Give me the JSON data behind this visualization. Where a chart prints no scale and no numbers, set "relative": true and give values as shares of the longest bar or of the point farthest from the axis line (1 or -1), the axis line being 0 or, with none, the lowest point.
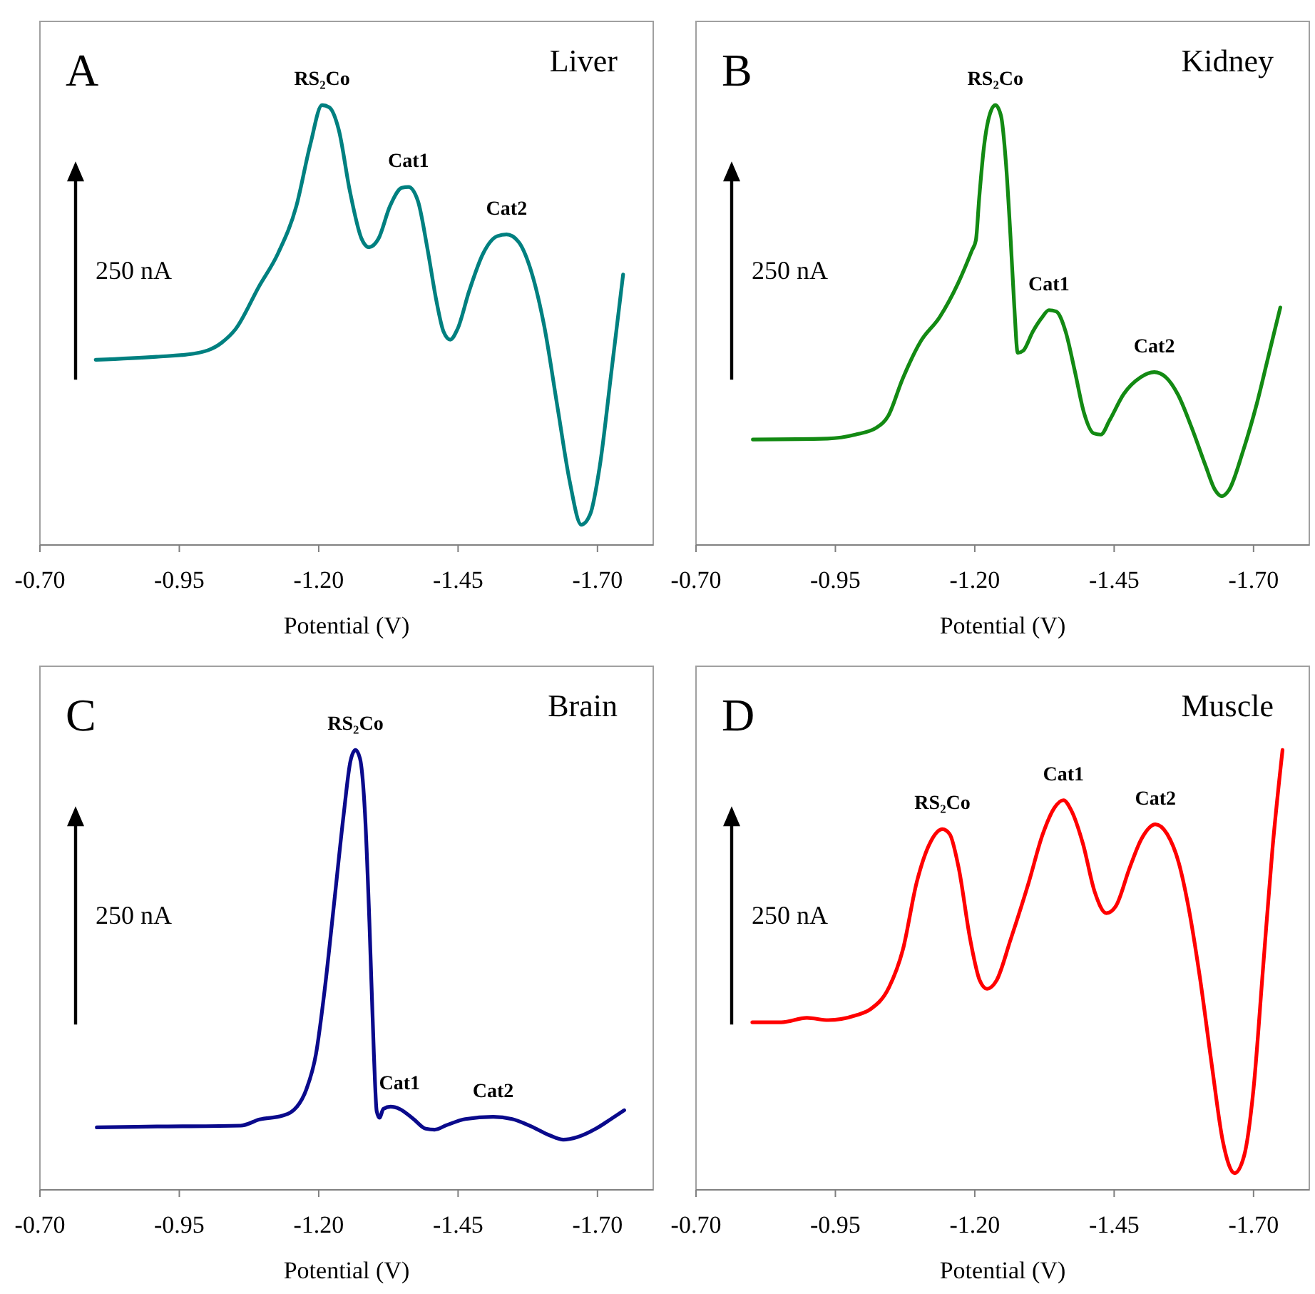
{
  "chart_data": [
    {
      "type": "line",
      "title": "A",
      "subtitle": "Liver",
      "xlabel": "Potential (V)",
      "relative": true,
      "xlim": [
        -0.7,
        -1.8
      ],
      "xticks": [
        {
          "value": -0.7,
          "label": "-0.70"
        },
        {
          "value": -0.95,
          "label": "-0.95"
        },
        {
          "value": -1.2,
          "label": "-1.20"
        },
        {
          "value": -1.45,
          "label": "-1.45"
        },
        {
          "value": -1.7,
          "label": "-1.70"
        }
      ],
      "series": [
        {
          "color": "#008080",
          "x": [
            -0.8,
            -0.909,
            -0.976,
            -1.026,
            -1.051,
            -1.093,
            -1.127,
            -1.16,
            -1.185,
            -1.206,
            -1.219,
            -1.236,
            -1.256,
            -1.277,
            -1.29,
            -1.307,
            -1.328,
            -1.349,
            -1.361,
            -1.378,
            -1.395,
            -1.411,
            -1.424,
            -1.436,
            -1.449,
            -1.47,
            -1.495,
            -1.52,
            -1.537,
            -1.558,
            -1.579,
            -1.604,
            -1.629,
            -1.65,
            -1.671,
            -1.687,
            -1.704,
            -1.725,
            -1.746
          ],
          "values": [
            0.421,
            0.428,
            0.435,
            0.46,
            0.491,
            0.588,
            0.663,
            0.771,
            0.911,
            1.0,
            0.995,
            0.944,
            0.804,
            0.696,
            0.677,
            0.696,
            0.771,
            0.812,
            0.814,
            0.782,
            0.674,
            0.556,
            0.485,
            0.467,
            0.491,
            0.578,
            0.663,
            0.702,
            0.706,
            0.69,
            0.631,
            0.501,
            0.308,
            0.146,
            0.046,
            0.07,
            0.178,
            0.394,
            0.615
          ]
        }
      ],
      "annotations": [
        "250 nA",
        {
          "text": "RS₂Co",
          "x": -1.206,
          "y": 1.0
        },
        {
          "text": "Cat1",
          "x": -1.361,
          "y": 0.814
        },
        {
          "text": "Cat2",
          "x": -1.537,
          "y": 0.706
        }
      ]
    },
    {
      "type": "line",
      "title": "B",
      "subtitle": "Kidney",
      "xlabel": "Potential (V)",
      "relative": true,
      "xlim": [
        -0.7,
        -1.8
      ],
      "xticks": [
        {
          "value": -0.7,
          "label": "-0.70"
        },
        {
          "value": -0.95,
          "label": "-0.95"
        },
        {
          "value": -1.2,
          "label": "-1.20"
        },
        {
          "value": -1.45,
          "label": "-1.45"
        },
        {
          "value": -1.7,
          "label": "-1.70"
        }
      ],
      "series": [
        {
          "color": "#138a13",
          "x": [
            -0.802,
            -0.936,
            -0.986,
            -1.024,
            -1.045,
            -1.07,
            -1.103,
            -1.137,
            -1.17,
            -1.195,
            -1.202,
            -1.208,
            -1.216,
            -1.229,
            -1.237,
            -1.247,
            -1.256,
            -1.264,
            -1.271,
            -1.277,
            -1.287,
            -1.304,
            -1.321,
            -1.333,
            -1.346,
            -1.363,
            -1.379,
            -1.396,
            -1.413,
            -1.426,
            -1.442,
            -1.467,
            -1.497,
            -1.522,
            -1.543,
            -1.564,
            -1.589,
            -1.614,
            -1.631,
            -1.643,
            -1.656,
            -1.681,
            -1.706,
            -1.727,
            -1.748
          ],
          "values": [
            0.24,
            0.242,
            0.251,
            0.267,
            0.294,
            0.376,
            0.463,
            0.518,
            0.595,
            0.67,
            0.693,
            0.79,
            0.9,
            0.987,
            1.0,
            0.976,
            0.867,
            0.703,
            0.54,
            0.437,
            0.442,
            0.485,
            0.518,
            0.534,
            0.531,
            0.485,
            0.398,
            0.3,
            0.254,
            0.251,
            0.284,
            0.343,
            0.381,
            0.393,
            0.381,
            0.343,
            0.267,
            0.18,
            0.125,
            0.111,
            0.125,
            0.213,
            0.322,
            0.431,
            0.54
          ]
        }
      ],
      "annotations": [
        "250 nA",
        {
          "text": "RS₂Co",
          "x": -1.237,
          "y": 1.0
        },
        {
          "text": "Cat1",
          "x": -1.333,
          "y": 0.534
        },
        {
          "text": "Cat2",
          "x": -1.522,
          "y": 0.393
        }
      ]
    },
    {
      "type": "line",
      "title": "C",
      "subtitle": "Brain",
      "xlabel": "Potential (V)",
      "relative": true,
      "xlim": [
        -0.7,
        -1.8
      ],
      "xticks": [
        {
          "value": -0.7,
          "label": "-0.70"
        },
        {
          "value": -0.95,
          "label": "-0.95"
        },
        {
          "value": -1.2,
          "label": "-1.20"
        },
        {
          "value": -1.45,
          "label": "-1.45"
        },
        {
          "value": -1.7,
          "label": "-1.70"
        }
      ],
      "series": [
        {
          "color": "#0a0a8c",
          "x": [
            -0.802,
            -0.91,
            -1.06,
            -1.094,
            -1.136,
            -1.161,
            -1.178,
            -1.195,
            -1.211,
            -1.228,
            -1.245,
            -1.257,
            -1.266,
            -1.274,
            -1.283,
            -1.291,
            -1.299,
            -1.304,
            -1.309,
            -1.316,
            -1.329,
            -1.345,
            -1.371,
            -1.392,
            -1.408,
            -1.429,
            -1.463,
            -1.513,
            -1.547,
            -1.58,
            -1.614,
            -1.639,
            -1.664,
            -1.697,
            -1.723,
            -1.748
          ],
          "values": [
            0.142,
            0.144,
            0.146,
            0.16,
            0.169,
            0.189,
            0.229,
            0.308,
            0.458,
            0.656,
            0.856,
            0.975,
            1.0,
            0.981,
            0.856,
            0.607,
            0.308,
            0.179,
            0.164,
            0.184,
            0.189,
            0.184,
            0.16,
            0.139,
            0.137,
            0.147,
            0.161,
            0.166,
            0.161,
            0.145,
            0.124,
            0.114,
            0.12,
            0.139,
            0.16,
            0.181
          ]
        }
      ],
      "annotations": [
        "250 nA",
        {
          "text": "RS₂Co",
          "x": -1.266,
          "y": 1.0
        },
        {
          "text": "Cat1",
          "x": -1.345,
          "y": 0.184
        },
        {
          "text": "Cat2",
          "x": -1.513,
          "y": 0.166
        }
      ]
    },
    {
      "type": "line",
      "title": "D",
      "subtitle": "Muscle",
      "xlabel": "Potential (V)",
      "relative": true,
      "xlim": [
        -0.7,
        -1.8
      ],
      "xticks": [
        {
          "value": -0.7,
          "label": "-0.70"
        },
        {
          "value": -0.95,
          "label": "-0.95"
        },
        {
          "value": -1.2,
          "label": "-1.20"
        },
        {
          "value": -1.45,
          "label": "-1.45"
        },
        {
          "value": -1.7,
          "label": "-1.70"
        }
      ],
      "series": [
        {
          "color": "#ff0000",
          "x": [
            -0.801,
            -0.853,
            -0.899,
            -0.937,
            -0.987,
            -1.012,
            -1.046,
            -1.071,
            -1.096,
            -1.121,
            -1.142,
            -1.155,
            -1.171,
            -1.192,
            -1.209,
            -1.222,
            -1.239,
            -1.264,
            -1.297,
            -1.322,
            -1.343,
            -1.359,
            -1.373,
            -1.394,
            -1.415,
            -1.436,
            -1.453,
            -1.478,
            -1.499,
            -1.524,
            -1.545,
            -1.566,
            -1.583,
            -1.604,
            -1.625,
            -1.645,
            -1.666,
            -1.683,
            -1.7,
            -1.717,
            -1.734,
            -1.752
          ],
          "values": [
            0.381,
            0.381,
            0.391,
            0.386,
            0.397,
            0.41,
            0.46,
            0.546,
            0.7,
            0.792,
            0.82,
            0.809,
            0.733,
            0.568,
            0.476,
            0.457,
            0.476,
            0.568,
            0.7,
            0.809,
            0.869,
            0.886,
            0.863,
            0.787,
            0.678,
            0.629,
            0.645,
            0.733,
            0.798,
            0.831,
            0.809,
            0.743,
            0.645,
            0.481,
            0.285,
            0.11,
            0.038,
            0.077,
            0.23,
            0.503,
            0.776,
            1.0
          ]
        }
      ],
      "annotations": [
        "250 nA",
        {
          "text": "RS₂Co",
          "x": -1.142,
          "y": 0.82
        },
        {
          "text": "Cat1",
          "x": -1.359,
          "y": 0.886
        },
        {
          "text": "Cat2",
          "x": -1.524,
          "y": 0.831
        }
      ]
    }
  ]
}
